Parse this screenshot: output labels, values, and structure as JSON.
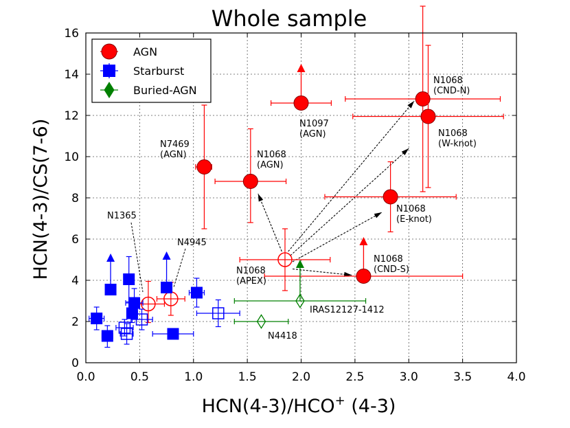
{
  "chart_data": {
    "type": "scatter",
    "title": "Whole sample",
    "xlabel": "HCN(4-3)/HCO",
    "xlabel_sup": "+",
    "xlabel_tail": " (4-3)",
    "ylabel": "HCN(4-3)/CS(7-6)",
    "xlim": [
      0.0,
      4.0
    ],
    "ylim": [
      0,
      16
    ],
    "xticks": [
      0.0,
      0.5,
      1.0,
      1.5,
      2.0,
      2.5,
      3.0,
      3.5,
      4.0
    ],
    "xtick_labels": [
      "0.0",
      "0.5",
      "1.0",
      "1.5",
      "2.0",
      "2.5",
      "3.0",
      "3.5",
      "4.0"
    ],
    "yticks": [
      0,
      2,
      4,
      6,
      8,
      10,
      12,
      14,
      16
    ],
    "ytick_labels": [
      "0",
      "2",
      "4",
      "6",
      "8",
      "10",
      "12",
      "14",
      "16"
    ],
    "grid": true,
    "legend": {
      "placement": "top-left",
      "entries": [
        {
          "label": "AGN",
          "color": "#ff0000",
          "marker": "circle"
        },
        {
          "label": "Starburst",
          "color": "#0000ff",
          "marker": "square"
        },
        {
          "label": "Buried-AGN",
          "color": "#008000",
          "marker": "diamond"
        }
      ]
    },
    "colors": {
      "agn": "#ff0000",
      "starburst": "#0000ff",
      "buried": "#008000",
      "marker_edge": "#800000"
    },
    "series": [
      {
        "name": "AGN",
        "points": [
          {
            "x": 1.1,
            "y": 9.5,
            "xerr": [
              0.08,
              0.07
            ],
            "yerr": [
              3.0,
              3.0
            ],
            "filled": true,
            "label": "N7469",
            "label2": "(AGN)"
          },
          {
            "x": 1.53,
            "y": 8.8,
            "xerr": [
              0.33,
              0.33
            ],
            "yerr": [
              2.0,
              2.55
            ],
            "filled": true,
            "label": "N1068",
            "label2": "(AGN)"
          },
          {
            "x": 2.0,
            "y": 12.6,
            "xerr": [
              0.28,
              0.28
            ],
            "yerr": [
              0,
              0
            ],
            "filled": true,
            "lower_limit": true,
            "arrow_to": 14.3,
            "label": "N1097",
            "label2": "(AGN)"
          },
          {
            "x": 3.13,
            "y": 12.8,
            "xerr": [
              0.72,
              0.72
            ],
            "yerr": [
              4.5,
              4.5
            ],
            "filled": true,
            "label": "N1068",
            "label2": "(CND-N)"
          },
          {
            "x": 3.18,
            "y": 11.95,
            "xerr": [
              0.7,
              0.7
            ],
            "yerr": [
              3.45,
              3.45
            ],
            "filled": true,
            "label": "N1068",
            "label2": "(W-knot)"
          },
          {
            "x": 2.83,
            "y": 8.05,
            "xerr": [
              0.61,
              0.61
            ],
            "yerr": [
              1.7,
              1.7
            ],
            "filled": true,
            "label": "N1068",
            "label2": "(E-knot)"
          },
          {
            "x": 2.58,
            "y": 4.2,
            "xerr": [
              0.92,
              0.92
            ],
            "yerr": [
              0,
              0
            ],
            "filled": true,
            "lower_limit": true,
            "arrow_to": 5.9,
            "label": "N1068",
            "label2": "(CND-S)"
          },
          {
            "x": 1.85,
            "y": 5.0,
            "xerr": [
              0.42,
              0.42
            ],
            "yerr": [
              1.5,
              1.5
            ],
            "filled": false,
            "label": "N1068",
            "label2": "(APEX)"
          },
          {
            "x": 0.58,
            "y": 2.85,
            "xerr": [
              0.15,
              0.15
            ],
            "yerr": [
              0.9,
              1.1
            ],
            "filled": false,
            "label": "N1365",
            "label2": ""
          },
          {
            "x": 0.79,
            "y": 3.1,
            "xerr": [
              0.13,
              0.13
            ],
            "yerr": [
              0.8,
              0.8
            ],
            "filled": false,
            "label": "N4945",
            "label2": ""
          }
        ]
      },
      {
        "name": "Starburst",
        "points": [
          {
            "x": 0.1,
            "y": 2.15,
            "xerr": [
              0.07,
              0.07
            ],
            "yerr": [
              0.55,
              0.55
            ],
            "filled": true
          },
          {
            "x": 0.2,
            "y": 1.3,
            "xerr": [
              0.05,
              0.05
            ],
            "yerr": [
              0.55,
              0.5
            ],
            "filled": true
          },
          {
            "x": 0.23,
            "y": 3.55,
            "xerr": [
              0.0,
              0.0
            ],
            "yerr": [
              0,
              0
            ],
            "filled": true,
            "lower_limit": true,
            "arrow_to": 5.1
          },
          {
            "x": 0.4,
            "y": 4.05,
            "xerr": [
              0.04,
              0.04
            ],
            "yerr": [
              1.1,
              1.1
            ],
            "filled": true
          },
          {
            "x": 0.43,
            "y": 2.4,
            "xerr": [
              0.05,
              0.05
            ],
            "yerr": [
              0.45,
              0.45
            ],
            "filled": true
          },
          {
            "x": 0.45,
            "y": 2.9,
            "xerr": [
              0.08,
              0.08
            ],
            "yerr": [
              0.7,
              0.7
            ],
            "filled": true
          },
          {
            "x": 0.75,
            "y": 3.65,
            "xerr": [
              0.0,
              0.0
            ],
            "yerr": [
              0,
              0
            ],
            "filled": true,
            "lower_limit": true,
            "arrow_to": 5.2
          },
          {
            "x": 0.81,
            "y": 1.4,
            "xerr": [
              0.19,
              0.19
            ],
            "yerr": [
              0,
              0
            ],
            "filled": true
          },
          {
            "x": 1.03,
            "y": 3.4,
            "xerr": [
              0.07,
              0.07
            ],
            "yerr": [
              0.7,
              0.7
            ],
            "filled": true
          },
          {
            "x": 0.36,
            "y": 1.7,
            "xerr": [
              0.08,
              0.08
            ],
            "yerr": [
              0.4,
              0.4
            ],
            "filled": false
          },
          {
            "x": 0.38,
            "y": 1.4,
            "xerr": [
              0.06,
              0.06
            ],
            "yerr": [
              0.5,
              0.5
            ],
            "filled": false
          },
          {
            "x": 0.52,
            "y": 2.1,
            "xerr": [
              0.1,
              0.1
            ],
            "yerr": [
              0.5,
              0.5
            ],
            "filled": false
          },
          {
            "x": 1.23,
            "y": 2.4,
            "xerr": [
              0.2,
              0.2
            ],
            "yerr": [
              0.65,
              0.65
            ],
            "filled": false
          }
        ]
      },
      {
        "name": "Buried-AGN",
        "points": [
          {
            "x": 1.99,
            "y": 3.0,
            "xerr": [
              0.61,
              0.61
            ],
            "yerr": [
              0,
              0
            ],
            "filled": false,
            "lower_limit": true,
            "arrow_to": 4.8,
            "label": "IRAS12127-1412",
            "label2": ""
          },
          {
            "x": 1.63,
            "y": 2.0,
            "xerr": [
              0.25,
              0.25
            ],
            "yerr": [
              0,
              0
            ],
            "filled": false,
            "label": "N4418",
            "label2": ""
          }
        ]
      }
    ],
    "dashed_arrows": [
      {
        "from": [
          1.82,
          5.4
        ],
        "to": [
          1.6,
          8.2
        ]
      },
      {
        "from": [
          1.88,
          5.4
        ],
        "to": [
          3.05,
          12.7
        ]
      },
      {
        "from": [
          1.9,
          5.2
        ],
        "to": [
          3.0,
          10.4
        ]
      },
      {
        "from": [
          1.92,
          4.9
        ],
        "to": [
          2.75,
          7.3
        ]
      },
      {
        "from": [
          1.92,
          4.55
        ],
        "to": [
          2.47,
          4.25
        ]
      }
    ]
  }
}
